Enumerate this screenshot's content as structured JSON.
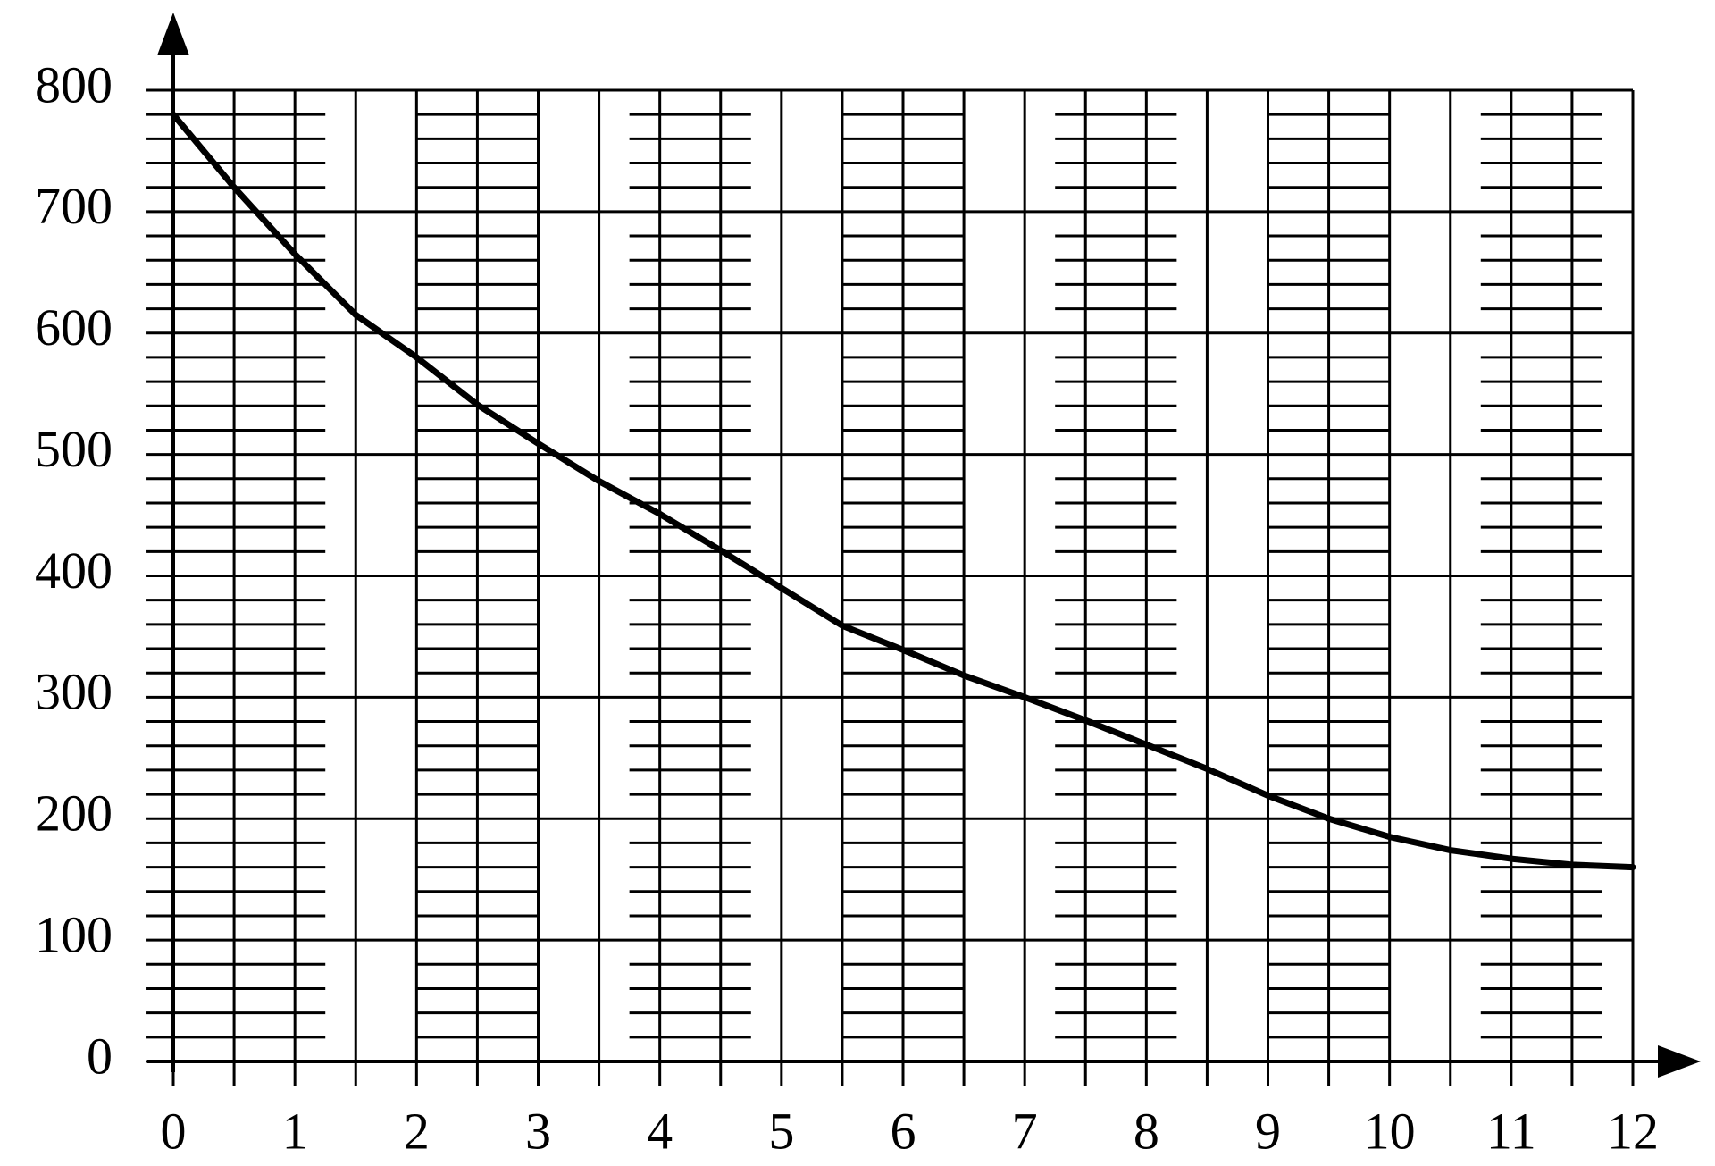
{
  "chart_data": {
    "type": "line",
    "x": [
      0,
      0.5,
      1,
      1.5,
      2,
      2.5,
      3,
      3.5,
      4,
      4.5,
      5,
      5.5,
      6,
      6.5,
      7,
      7.5,
      8,
      8.5,
      9,
      9.5,
      10,
      10.5,
      11,
      11.5,
      12
    ],
    "series": [
      {
        "color": "#000000",
        "values": [
          780,
          720,
          665,
          615,
          580,
          541,
          509,
          478,
          451,
          421,
          390,
          359,
          339,
          318,
          300,
          281,
          261,
          241,
          219,
          200,
          185,
          174,
          167,
          162,
          160
        ]
      }
    ],
    "xlim": [
      0,
      12
    ],
    "ylim": [
      0,
      800
    ],
    "xticks": [
      0,
      1,
      2,
      3,
      4,
      5,
      6,
      7,
      8,
      9,
      10,
      11,
      12
    ],
    "yticks": [
      0,
      100,
      200,
      300,
      400,
      500,
      600,
      700,
      800
    ],
    "minor_xticks": [
      0.5,
      1.5,
      2.5,
      3.5,
      4.5,
      5.5,
      6.5,
      7.5,
      8.5,
      9.5,
      10.5,
      11.5
    ],
    "minor_yticks": [
      20,
      40,
      60,
      80,
      120,
      140,
      160,
      180,
      220,
      240,
      260,
      280,
      320,
      340,
      360,
      380,
      420,
      440,
      460,
      480,
      520,
      540,
      560,
      580,
      620,
      640,
      660,
      680,
      720,
      740,
      760,
      780
    ],
    "grid": true
  }
}
